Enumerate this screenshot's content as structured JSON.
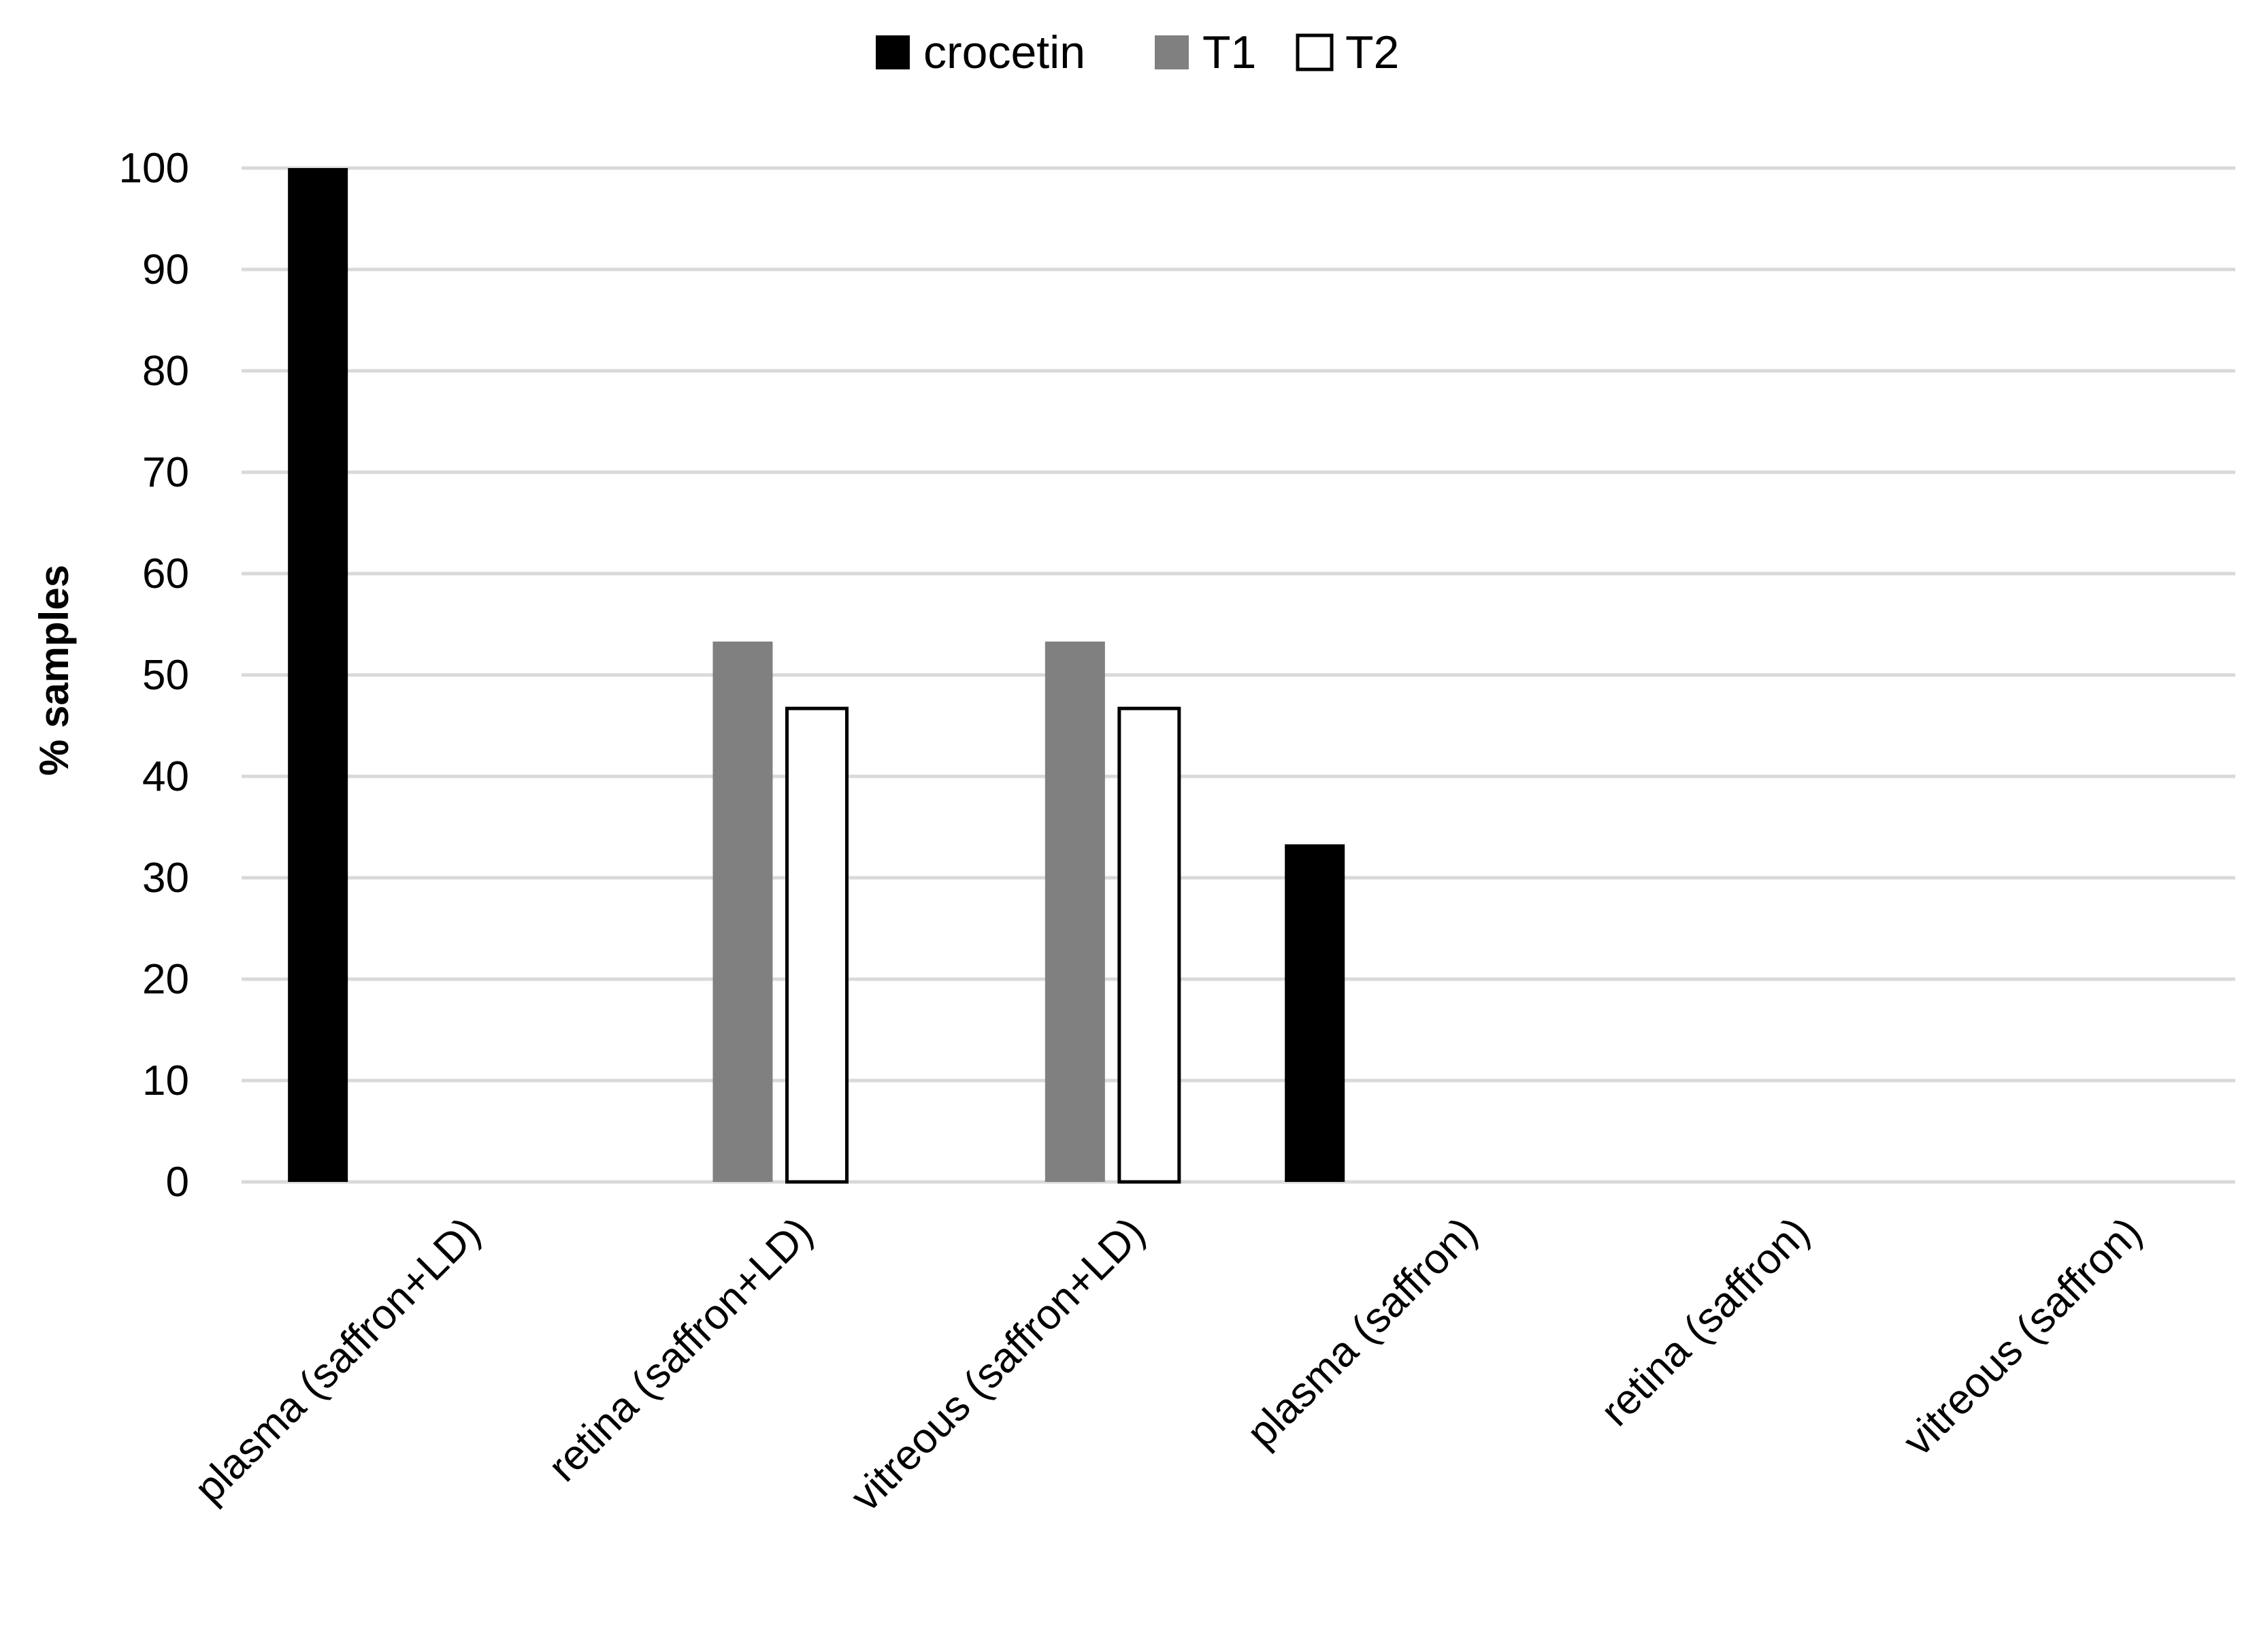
{
  "chart_data": {
    "type": "bar",
    "categories": [
      "plasma (saffron+LD)",
      "retina (saffron+LD)",
      "vitreous (saffron+LD)",
      "plasma (saffron)",
      "retina  (saffron)",
      "vitreous (saffron)"
    ],
    "series": [
      {
        "name": "crocetin",
        "color": "#000000",
        "values": [
          100,
          0,
          0,
          33.3,
          0,
          0
        ]
      },
      {
        "name": "T1",
        "color": "#808080",
        "values": [
          0,
          53.3,
          53.3,
          0,
          0,
          0
        ]
      },
      {
        "name": "T2",
        "color": "#ffffff",
        "values": [
          0,
          46.7,
          46.7,
          0,
          0,
          0
        ]
      }
    ],
    "title": "",
    "xlabel": "",
    "ylabel": "% samples",
    "ylim": [
      0,
      100
    ],
    "yticks": [
      0,
      10,
      20,
      30,
      40,
      50,
      60,
      70,
      80,
      90,
      100
    ],
    "grid": true,
    "legend_position": "top-center"
  }
}
